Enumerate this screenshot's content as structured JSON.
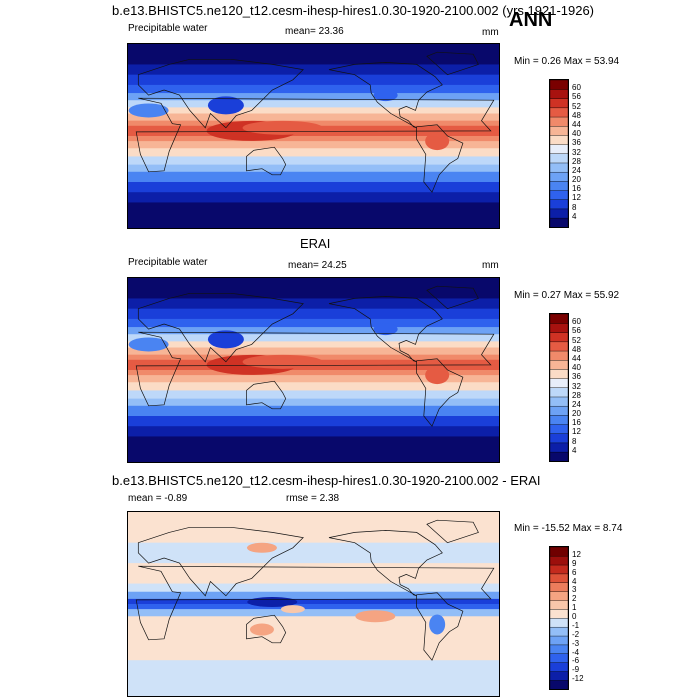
{
  "header": {
    "title": "b.e13.BHISTC5.ne120_t12.cesm-ihesp-hires1.0.30-1920-2100.002 (yrs 1921-1926)",
    "season": "ANN"
  },
  "panels": [
    {
      "heading": "",
      "left_label": "Precipitable water",
      "center_label": "mean=  23.36",
      "right_label": "mm",
      "minmax": "Min =   0.26 Max =  53.94",
      "colorbar_ticks": [
        "60",
        "56",
        "52",
        "48",
        "44",
        "40",
        "36",
        "32",
        "28",
        "24",
        "20",
        "16",
        "12",
        "8",
        "4"
      ],
      "colors": [
        "#08086b",
        "#0c1fa8",
        "#1a3fd9",
        "#2f62ee",
        "#4a84f2",
        "#6da2f5",
        "#93bef7",
        "#bdd8f9",
        "#e8eefa",
        "#fbdcc6",
        "#f7b596",
        "#f08a6a",
        "#e55b43",
        "#cf3224",
        "#a8120f",
        "#7a0000"
      ]
    },
    {
      "heading": "ERAI",
      "left_label": "Precipitable water",
      "center_label": "mean=  24.25",
      "right_label": "mm",
      "minmax": "Min =   0.27 Max =  55.92",
      "colorbar_ticks": [
        "60",
        "56",
        "52",
        "48",
        "44",
        "40",
        "36",
        "32",
        "28",
        "24",
        "20",
        "16",
        "12",
        "8",
        "4"
      ],
      "colors": [
        "#08086b",
        "#0c1fa8",
        "#1a3fd9",
        "#2f62ee",
        "#4a84f2",
        "#6da2f5",
        "#93bef7",
        "#bdd8f9",
        "#e8eefa",
        "#fbdcc6",
        "#f7b596",
        "#f08a6a",
        "#e55b43",
        "#cf3224",
        "#a8120f",
        "#7a0000"
      ]
    },
    {
      "heading": "b.e13.BHISTC5.ne120_t12.cesm-ihesp-hires1.0.30-1920-2100.002 - ERAI",
      "left_label": "mean =  -0.89",
      "center_label": "rmse =   2.38",
      "right_label": "",
      "minmax": "Min = -15.52 Max =   8.74",
      "colorbar_ticks": [
        "12",
        "9",
        "6",
        "4",
        "3",
        "2",
        "1",
        "0",
        "-1",
        "-2",
        "-3",
        "-4",
        "-6",
        "-9",
        "-12"
      ],
      "colors": [
        "#08086b",
        "#0c1fa8",
        "#1a3fd9",
        "#2f62ee",
        "#4a84f2",
        "#6da2f5",
        "#93bef7",
        "#cfe2f8",
        "#fbe2d0",
        "#f9c7aa",
        "#f5a482",
        "#ec7d5c",
        "#de5238",
        "#c42a1d",
        "#9c0f0c",
        "#700000"
      ]
    }
  ]
}
